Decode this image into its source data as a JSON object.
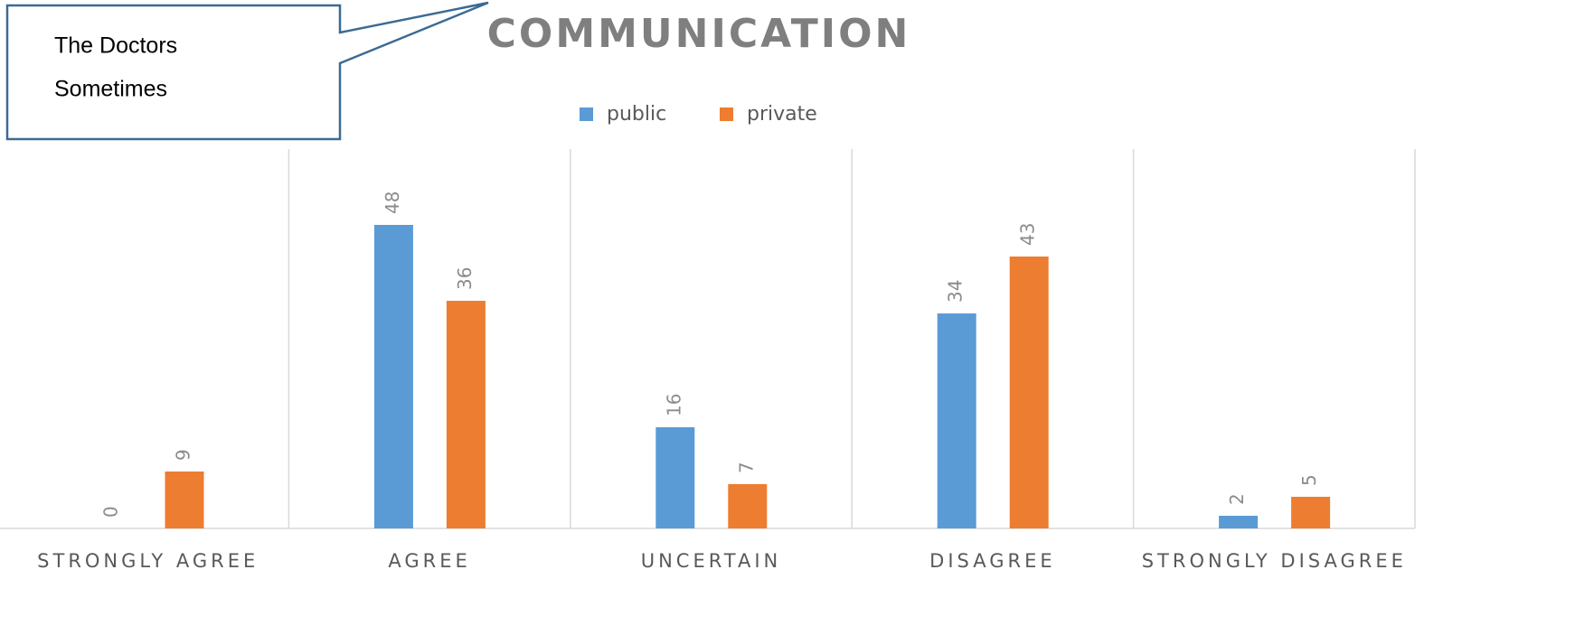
{
  "chart_data": {
    "type": "bar",
    "title": "COMMUNICATION",
    "annotation_lines": [
      "The Doctors",
      "Sometimes"
    ],
    "categories": [
      "STRONGLY AGREE",
      "AGREE",
      "UNCERTAIN",
      "DISAGREE",
      "STRONGLY DISAGREE"
    ],
    "series": [
      {
        "name": "public",
        "color": "#5b9bd5",
        "values": [
          0,
          48,
          16,
          34,
          2
        ]
      },
      {
        "name": "private",
        "color": "#ed7d31",
        "values": [
          9,
          36,
          7,
          43,
          5
        ]
      }
    ],
    "ylim": [
      0,
      60
    ],
    "legend": "top"
  }
}
